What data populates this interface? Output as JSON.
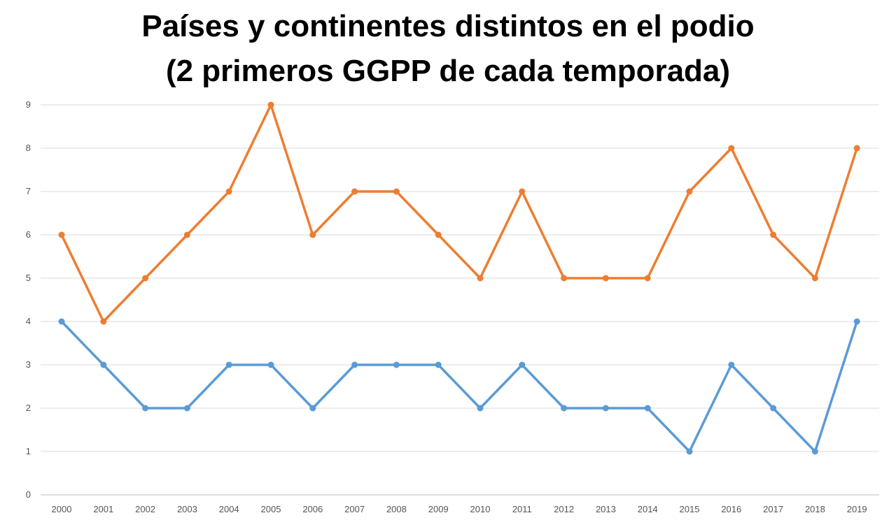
{
  "chart_data": {
    "type": "line",
    "title_line1": "Países y continentes distintos en el podio",
    "title_line2": "(2 primeros GGPP de cada temporada)",
    "xlabel": "",
    "ylabel": "",
    "x": [
      "2000",
      "2001",
      "2002",
      "2003",
      "2004",
      "2005",
      "2006",
      "2007",
      "2008",
      "2009",
      "2010",
      "2011",
      "2012",
      "2013",
      "2014",
      "2015",
      "2016",
      "2017",
      "2018",
      "2019"
    ],
    "ylim": [
      0,
      9
    ],
    "yticks": [
      "0",
      "1",
      "2",
      "3",
      "4",
      "5",
      "6",
      "7",
      "8",
      "9"
    ],
    "grid": true,
    "legend": "none",
    "series": [
      {
        "color": "#ED7D31",
        "values": [
          6,
          4,
          5,
          6,
          7,
          9,
          6,
          7,
          7,
          6,
          5,
          7,
          5,
          5,
          5,
          7,
          8,
          6,
          5,
          8
        ]
      },
      {
        "color": "#5B9BD5",
        "values": [
          4,
          3,
          2,
          2,
          3,
          3,
          2,
          3,
          3,
          3,
          2,
          3,
          2,
          2,
          2,
          1,
          3,
          2,
          1,
          4
        ]
      }
    ]
  }
}
